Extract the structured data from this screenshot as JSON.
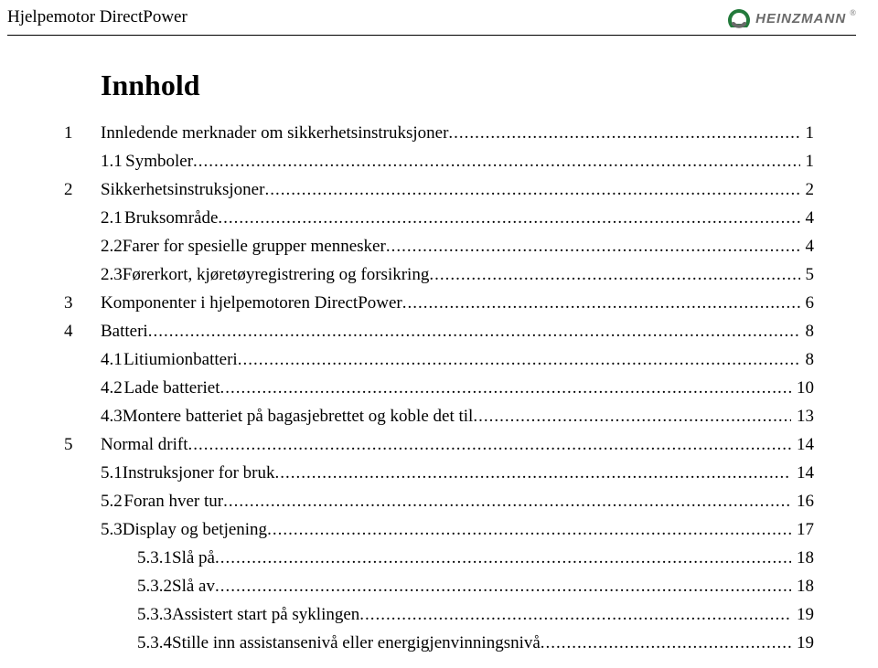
{
  "header": {
    "title": "Hjelpemotor DirectPower",
    "brand": "HEINZMANN",
    "reg": "®",
    "logo_color_primary": "#237a3b",
    "logo_color_secondary": "#6a6a6a"
  },
  "toc": {
    "title": "Innhold",
    "entries": [
      {
        "level": 0,
        "num": "1",
        "label": "Innledende merknader om sikkerhetsinstruksjoner",
        "page": "1"
      },
      {
        "level": 1,
        "num": "1.1",
        "label": "Symboler",
        "page": "1"
      },
      {
        "level": 0,
        "num": "2",
        "label": "Sikkerhetsinstruksjoner",
        "page": "2"
      },
      {
        "level": 1,
        "num": "2.1",
        "label": "Bruksområde",
        "page": "4"
      },
      {
        "level": 1,
        "num": "2.2",
        "label": "Farer for spesielle grupper mennesker",
        "page": "4"
      },
      {
        "level": 1,
        "num": "2.3",
        "label": "Førerkort, kjøretøyregistrering og forsikring",
        "page": "5"
      },
      {
        "level": 0,
        "num": "3",
        "label": "Komponenter i hjelpemotoren DirectPower",
        "page": "6"
      },
      {
        "level": 0,
        "num": "4",
        "label": "Batteri",
        "page": "8"
      },
      {
        "level": 1,
        "num": "4.1",
        "label": "Litiumionbatteri",
        "page": "8"
      },
      {
        "level": 1,
        "num": "4.2",
        "label": "Lade batteriet",
        "page": "10"
      },
      {
        "level": 1,
        "num": "4.3",
        "label": "Montere batteriet på bagasjebrettet og koble det til",
        "page": "13"
      },
      {
        "level": 0,
        "num": "5",
        "label": "Normal drift",
        "page": "14"
      },
      {
        "level": 1,
        "num": "5.1",
        "label": "Instruksjoner for bruk",
        "page": "14"
      },
      {
        "level": 1,
        "num": "5.2",
        "label": "Foran hver tur",
        "page": "16"
      },
      {
        "level": 1,
        "num": "5.3",
        "label": "Display og betjening",
        "page": "17"
      },
      {
        "level": 2,
        "num": "5.3.1",
        "label": "Slå på",
        "page": "18"
      },
      {
        "level": 2,
        "num": "5.3.2",
        "label": "Slå av",
        "page": "18"
      },
      {
        "level": 2,
        "num": "5.3.3",
        "label": "Assistert start på syklingen",
        "page": "19"
      },
      {
        "level": 2,
        "num": "5.3.4",
        "label": "Stille inn assistansenivå eller energigjenvinningsnivå",
        "page": "19"
      }
    ]
  }
}
